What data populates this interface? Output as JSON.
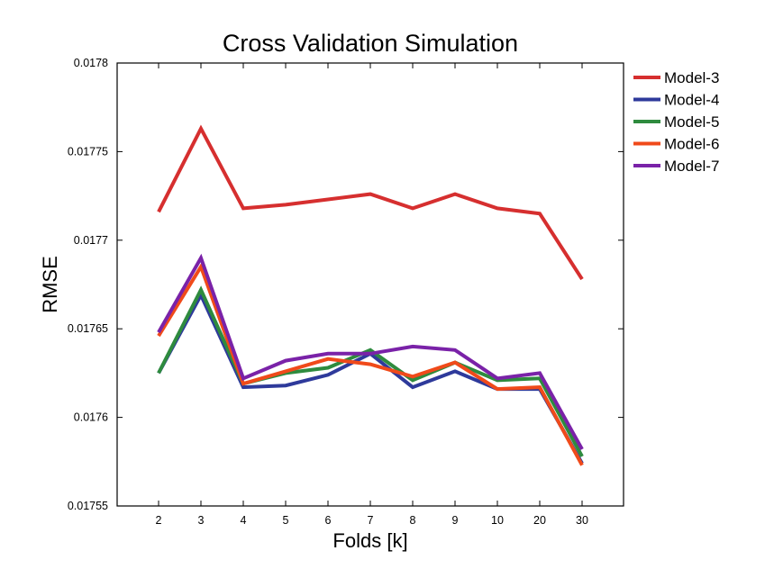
{
  "chart_data": {
    "type": "line",
    "title": "Cross Validation Simulation",
    "xlabel": "Folds [k]",
    "ylabel": "RMSE",
    "categories": [
      "2",
      "3",
      "4",
      "5",
      "6",
      "7",
      "8",
      "9",
      "10",
      "20",
      "30"
    ],
    "ylim": [
      0.01755,
      0.0178
    ],
    "yticks": [
      0.01755,
      0.0176,
      0.01765,
      0.0177,
      0.01775,
      0.0178
    ],
    "ytick_labels": [
      "0.01755",
      "0.0176",
      "0.01765",
      "0.0177",
      "0.01775",
      "0.0178"
    ],
    "grid": false,
    "legend_position": "outside-top-right",
    "series": [
      {
        "name": "Model-3",
        "color": "#d62f2f",
        "values": [
          0.017716,
          0.017763,
          0.017718,
          0.01772,
          0.017723,
          0.017726,
          0.017718,
          0.017726,
          0.017718,
          0.017715,
          0.017678
        ]
      },
      {
        "name": "Model-4",
        "color": "#2e3a9b",
        "values": [
          0.017625,
          0.017669,
          0.017617,
          0.017618,
          0.017624,
          0.017636,
          0.017617,
          0.017626,
          0.017616,
          0.017616,
          0.017574
        ]
      },
      {
        "name": "Model-5",
        "color": "#2e8b3e",
        "values": [
          0.017625,
          0.017672,
          0.017619,
          0.017625,
          0.017628,
          0.017638,
          0.017621,
          0.017631,
          0.017621,
          0.017622,
          0.017578
        ]
      },
      {
        "name": "Model-6",
        "color": "#f04a1a",
        "values": [
          0.017646,
          0.017685,
          0.017619,
          0.017626,
          0.017633,
          0.01763,
          0.017623,
          0.017631,
          0.017616,
          0.017617,
          0.017573
        ]
      },
      {
        "name": "Model-7",
        "color": "#7a22a8",
        "values": [
          0.017648,
          0.01769,
          0.017622,
          0.017632,
          0.017636,
          0.017636,
          0.01764,
          0.017638,
          0.017622,
          0.017625,
          0.017582
        ]
      }
    ]
  }
}
